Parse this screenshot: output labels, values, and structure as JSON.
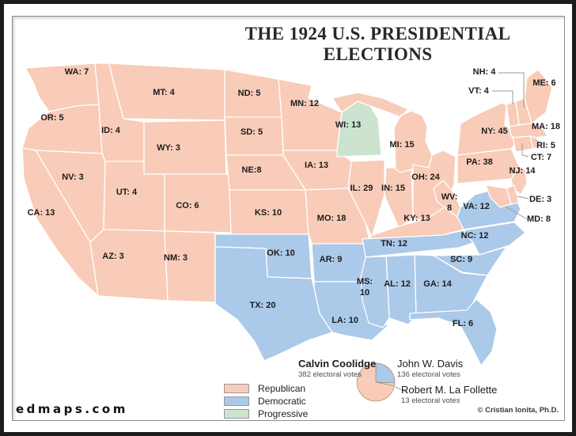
{
  "title": "THE 1924 U.S. PRESIDENTIAL ELECTIONS",
  "branding": {
    "logo": "edmaps.com",
    "copyright": "© Cristian Ionita, Ph.D."
  },
  "colors": {
    "republican": "#f8ccb8",
    "democratic": "#abc9e8",
    "progressive": "#cbe3cf",
    "label_text": "#1c1c1c"
  },
  "legend": [
    {
      "label": "Republican",
      "party": "republican"
    },
    {
      "label": "Democratic",
      "party": "democratic"
    },
    {
      "label": "Progressive",
      "party": "progressive"
    }
  ],
  "results": [
    {
      "name": "Calvin Coolidge",
      "detail": "382 electoral votes",
      "value": 382,
      "party": "republican"
    },
    {
      "name": "John W. Davis",
      "detail": "136 electoral votes",
      "value": 136,
      "party": "democratic"
    },
    {
      "name": "Robert M. La Follette",
      "detail": "13 electoral votes",
      "value": 13,
      "party": "progressive"
    }
  ],
  "chart_data": {
    "type": "pie",
    "series_label": "electoral votes",
    "slices": [
      {
        "label": "Calvin Coolidge",
        "value": 382,
        "party": "republican"
      },
      {
        "label": "John W. Davis",
        "value": 136,
        "party": "democratic"
      },
      {
        "label": "Robert M. La Follette",
        "value": 13,
        "party": "progressive"
      }
    ],
    "draw_order": [
      "John W. Davis",
      "Robert M. La Follette",
      "Calvin Coolidge"
    ]
  },
  "states": [
    {
      "abbr": "WA",
      "label": "WA: 7",
      "votes": 7,
      "party": "republican"
    },
    {
      "abbr": "OR",
      "label": "OR: 5",
      "votes": 5,
      "party": "republican"
    },
    {
      "abbr": "CA",
      "label": "CA: 13",
      "votes": 13,
      "party": "republican"
    },
    {
      "abbr": "ID",
      "label": "ID: 4",
      "votes": 4,
      "party": "republican"
    },
    {
      "abbr": "NV",
      "label": "NV: 3",
      "votes": 3,
      "party": "republican"
    },
    {
      "abbr": "UT",
      "label": "UT: 4",
      "votes": 4,
      "party": "republican"
    },
    {
      "abbr": "AZ",
      "label": "AZ: 3",
      "votes": 3,
      "party": "republican"
    },
    {
      "abbr": "MT",
      "label": "MT: 4",
      "votes": 4,
      "party": "republican"
    },
    {
      "abbr": "WY",
      "label": "WY: 3",
      "votes": 3,
      "party": "republican"
    },
    {
      "abbr": "CO",
      "label": "CO: 6",
      "votes": 6,
      "party": "republican"
    },
    {
      "abbr": "NM",
      "label": "NM: 3",
      "votes": 3,
      "party": "republican"
    },
    {
      "abbr": "ND",
      "label": "ND: 5",
      "votes": 5,
      "party": "republican"
    },
    {
      "abbr": "SD",
      "label": "SD: 5",
      "votes": 5,
      "party": "republican"
    },
    {
      "abbr": "NE",
      "label": "NE:8",
      "votes": 8,
      "party": "republican"
    },
    {
      "abbr": "KS",
      "label": "KS: 10",
      "votes": 10,
      "party": "republican"
    },
    {
      "abbr": "OK",
      "label": "OK: 10",
      "votes": 10,
      "party": "democratic"
    },
    {
      "abbr": "TX",
      "label": "TX: 20",
      "votes": 20,
      "party": "democratic"
    },
    {
      "abbr": "MN",
      "label": "MN: 12",
      "votes": 12,
      "party": "republican"
    },
    {
      "abbr": "IA",
      "label": "IA: 13",
      "votes": 13,
      "party": "republican"
    },
    {
      "abbr": "MO",
      "label": "MO: 18",
      "votes": 18,
      "party": "republican"
    },
    {
      "abbr": "AR",
      "label": "AR: 9",
      "votes": 9,
      "party": "democratic"
    },
    {
      "abbr": "LA",
      "label": "LA: 10",
      "votes": 10,
      "party": "democratic"
    },
    {
      "abbr": "WI",
      "label": "WI: 13",
      "votes": 13,
      "party": "progressive"
    },
    {
      "abbr": "IL",
      "label": "IL: 29",
      "votes": 29,
      "party": "republican"
    },
    {
      "abbr": "IN",
      "label": "IN: 15",
      "votes": 15,
      "party": "republican"
    },
    {
      "abbr": "MI",
      "label": "MI: 15",
      "votes": 15,
      "party": "republican"
    },
    {
      "abbr": "OH",
      "label": "OH: 24",
      "votes": 24,
      "party": "republican"
    },
    {
      "abbr": "KY",
      "label": "KY: 13",
      "votes": 13,
      "party": "republican"
    },
    {
      "abbr": "TN",
      "label": "TN: 12",
      "votes": 12,
      "party": "democratic"
    },
    {
      "abbr": "WV",
      "label": "WV:",
      "label2": "8",
      "votes": 8,
      "party": "republican"
    },
    {
      "abbr": "VA",
      "label": "VA: 12",
      "votes": 12,
      "party": "democratic"
    },
    {
      "abbr": "NC",
      "label": "NC: 12",
      "votes": 12,
      "party": "democratic"
    },
    {
      "abbr": "SC",
      "label": "SC: 9",
      "votes": 9,
      "party": "democratic"
    },
    {
      "abbr": "GA",
      "label": "GA: 14",
      "votes": 14,
      "party": "democratic"
    },
    {
      "abbr": "AL",
      "label": "AL: 12",
      "votes": 12,
      "party": "democratic"
    },
    {
      "abbr": "MS",
      "label": "MS:",
      "label2": "10",
      "votes": 10,
      "party": "democratic"
    },
    {
      "abbr": "FL",
      "label": "FL: 6",
      "votes": 6,
      "party": "democratic"
    },
    {
      "abbr": "PA",
      "label": "PA: 38",
      "votes": 38,
      "party": "republican"
    },
    {
      "abbr": "NY",
      "label": "NY: 45",
      "votes": 45,
      "party": "republican"
    },
    {
      "abbr": "NJ",
      "label": "NJ: 14",
      "votes": 14,
      "party": "republican"
    },
    {
      "abbr": "DE",
      "label": "DE: 3",
      "votes": 3,
      "party": "republican"
    },
    {
      "abbr": "MD",
      "label": "MD: 8",
      "votes": 8,
      "party": "republican"
    },
    {
      "abbr": "VT",
      "label": "VT: 4",
      "votes": 4,
      "party": "republican"
    },
    {
      "abbr": "NH",
      "label": "NH: 4",
      "votes": 4,
      "party": "republican"
    },
    {
      "abbr": "ME",
      "label": "ME: 6",
      "votes": 6,
      "party": "republican"
    },
    {
      "abbr": "MA",
      "label": "MA: 18",
      "votes": 18,
      "party": "republican"
    },
    {
      "abbr": "CT",
      "label": "CT: 7",
      "votes": 7,
      "party": "republican"
    },
    {
      "abbr": "RI",
      "label": "RI: 5",
      "votes": 5,
      "party": "republican"
    }
  ]
}
